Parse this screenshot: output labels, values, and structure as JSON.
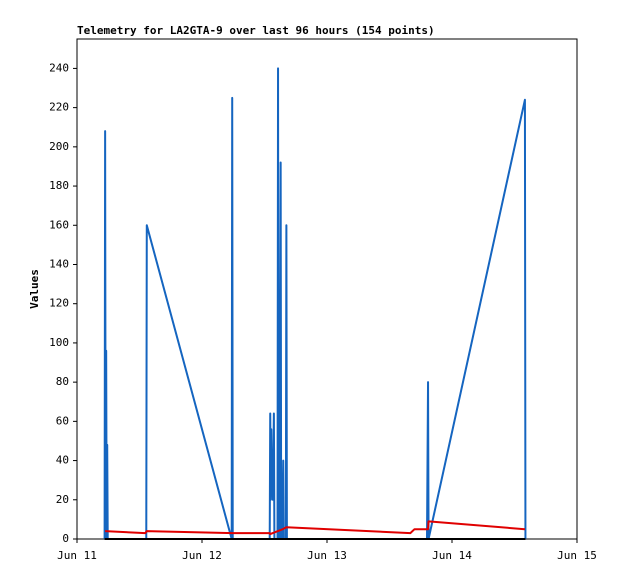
{
  "chart_data": {
    "type": "line",
    "title": "Telemetry for LA2GTA-9 over last 96 hours (154 points)",
    "y_label": "Values",
    "xlim": [
      0,
      96
    ],
    "xticks": [
      {
        "value": 0,
        "label": "Jun 11"
      },
      {
        "value": 24,
        "label": "Jun 12"
      },
      {
        "value": 48,
        "label": "Jun 13"
      },
      {
        "value": 72,
        "label": "Jun 14"
      },
      {
        "value": 96,
        "label": "Jun 15"
      }
    ],
    "ylim": [
      0,
      255
    ],
    "yticks": [
      0,
      20,
      40,
      60,
      80,
      100,
      120,
      140,
      160,
      180,
      200,
      220,
      240
    ],
    "grid": false,
    "series": [
      {
        "color": "#1565c0",
        "x": [
          5.3,
          5.4,
          5.5,
          5.6,
          5.7,
          5.8,
          5.9,
          13.3,
          13.4,
          29.7,
          29.8,
          29.9,
          37.0,
          37.1,
          37.2,
          37.3,
          37.4,
          37.5,
          37.6,
          37.8,
          37.9,
          38.5,
          38.6,
          38.7,
          38.8,
          38.9,
          39.1,
          39.2,
          39.3,
          39.4,
          39.6,
          39.7,
          40.1,
          40.2,
          40.3,
          67.2,
          67.4,
          67.5,
          86.0,
          86.1
        ],
        "values": [
          0,
          208,
          0,
          96,
          0,
          48,
          0,
          0,
          160,
          0,
          225,
          0,
          0,
          64,
          20,
          56,
          24,
          40,
          20,
          64,
          0,
          0,
          240,
          0,
          32,
          0,
          192,
          0,
          16,
          0,
          40,
          0,
          0,
          160,
          0,
          0,
          80,
          0,
          224,
          0
        ]
      },
      {
        "color": "#e00000",
        "x": [
          5.4,
          13.1,
          13.4,
          29.8,
          37.0,
          37.1,
          39.5,
          40.2,
          64.0,
          64.8,
          67.4,
          67.5,
          86.0
        ],
        "values": [
          4,
          3,
          4,
          3,
          3,
          2.5,
          5,
          6,
          3,
          5,
          5,
          9,
          5
        ]
      },
      {
        "color": "#000000",
        "x": [
          5.3,
          86.1
        ],
        "values": [
          0,
          0
        ]
      }
    ]
  }
}
